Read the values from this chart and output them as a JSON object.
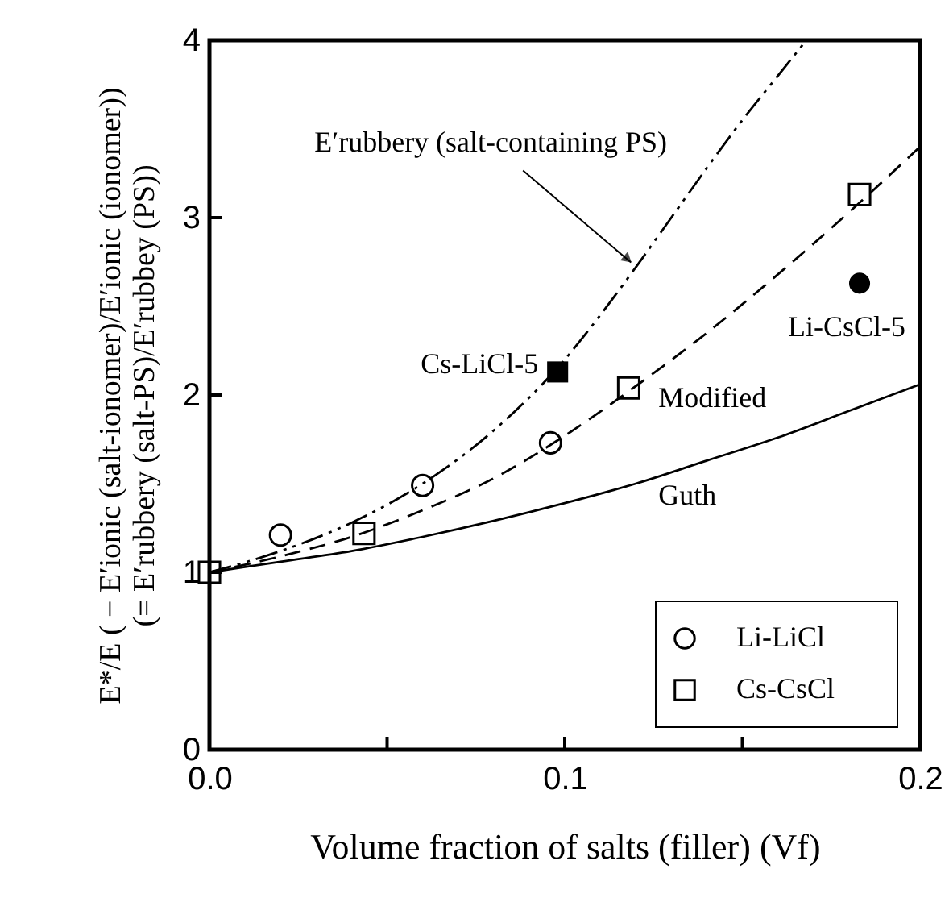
{
  "chart_data": {
    "type": "scatter",
    "xlabel": "Volume fraction of salts (filler) (Vf)",
    "ylabel": "E*/E ( − E′ionic (salt-ionomer)/E′ionic (ionomer))\n(= E′rubbery (salt-PS)/E′rubbey (PS))",
    "xlim": [
      0,
      0.2
    ],
    "xticks": [
      {
        "value": 0,
        "label": "0.0"
      },
      {
        "value": 0.05,
        "label": null
      },
      {
        "value": 0.1,
        "label": "0.1"
      },
      {
        "value": 0.15,
        "label": null
      },
      {
        "value": 0.2,
        "label": "0.2"
      }
    ],
    "ylim": [
      0,
      4
    ],
    "yticks": [
      0,
      1,
      2,
      3,
      4
    ],
    "grid": false,
    "legend": "bottom right",
    "series": [
      {
        "type": "line",
        "line_style": "dashdotdot",
        "marker": "none",
        "color": "#000000",
        "name": "E′rubbery (salt-containing PS)",
        "x": [
          0,
          0.02,
          0.04,
          0.06,
          0.08,
          0.1,
          0.11,
          0.12,
          0.13,
          0.14,
          0.15,
          0.16,
          0.168
        ],
        "values": [
          1,
          1.12,
          1.28,
          1.5,
          1.8,
          2.2,
          2.45,
          2.72,
          3.0,
          3.28,
          3.55,
          3.8,
          4.0
        ]
      },
      {
        "type": "line",
        "line_style": "dashed",
        "marker": "none",
        "color": "#000000",
        "name": "Modified",
        "x": [
          0,
          0.02,
          0.04,
          0.06,
          0.08,
          0.1,
          0.12,
          0.14,
          0.16,
          0.18,
          0.2
        ],
        "values": [
          1,
          1.09,
          1.2,
          1.35,
          1.53,
          1.77,
          2.05,
          2.35,
          2.68,
          3.03,
          3.4
        ]
      },
      {
        "type": "line",
        "line_style": "solid",
        "marker": "none",
        "color": "#000000",
        "name": "Guth",
        "x": [
          0,
          0.02,
          0.04,
          0.06,
          0.08,
          0.1,
          0.12,
          0.14,
          0.16,
          0.18,
          0.2
        ],
        "values": [
          1,
          1.06,
          1.12,
          1.2,
          1.29,
          1.39,
          1.5,
          1.63,
          1.76,
          1.91,
          2.06
        ]
      },
      {
        "name": "Li-LiCl",
        "marker": "circle",
        "color": "#000000",
        "x": [
          0.02,
          0.06,
          0.096
        ],
        "values": [
          1.21,
          1.49,
          1.73
        ]
      },
      {
        "name": "Cs-CsCl",
        "marker": "square",
        "color": "#000000",
        "x": [
          0,
          0.0435,
          0.118,
          0.183
        ],
        "values": [
          1,
          1.22,
          2.04,
          3.13
        ]
      },
      {
        "name": "Cs-LiCl-5",
        "marker": "square",
        "color": "#000000",
        "x": [
          0.098
        ],
        "values": [
          2.13
        ]
      },
      {
        "name": "Li-CsCl-5",
        "marker": "circle",
        "color": "#000000",
        "x": [
          0.183
        ],
        "values": [
          2.63
        ]
      }
    ]
  }
}
